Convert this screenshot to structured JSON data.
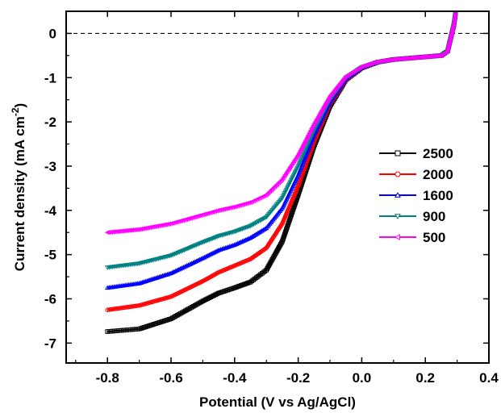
{
  "chart_data": {
    "type": "line",
    "title": "",
    "xlabel": "Potential (V vs Ag/AgCl)",
    "ylabel_main": "Current density (mA cm",
    "ylabel_sup": "-2",
    "ylabel_close": ")",
    "xlim": [
      -0.93,
      0.4
    ],
    "ylim": [
      -7.45,
      0.5
    ],
    "x_ticks": [
      "-0.8",
      "-0.6",
      "-0.4",
      "-0.2",
      "0.0",
      "0.2",
      "0.4"
    ],
    "x_tick_values": [
      -0.8,
      -0.6,
      -0.4,
      -0.2,
      0.0,
      0.2,
      0.4
    ],
    "y_ticks": [
      "0",
      "-1",
      "-2",
      "-3",
      "-4",
      "-5",
      "-6",
      "-7"
    ],
    "y_tick_values": [
      0,
      -1,
      -2,
      -3,
      -4,
      -5,
      -6,
      -7
    ],
    "zero_line": 0,
    "legend_position": "right",
    "series": [
      {
        "name": "2500",
        "color": "#000000",
        "marker": "square",
        "points": [
          [
            -0.8,
            -6.74
          ],
          [
            -0.7,
            -6.68
          ],
          [
            -0.6,
            -6.45
          ],
          [
            -0.5,
            -6.05
          ],
          [
            -0.45,
            -5.87
          ],
          [
            -0.4,
            -5.75
          ],
          [
            -0.35,
            -5.62
          ],
          [
            -0.3,
            -5.35
          ],
          [
            -0.25,
            -4.7
          ],
          [
            -0.2,
            -3.65
          ],
          [
            -0.15,
            -2.55
          ],
          [
            -0.1,
            -1.65
          ],
          [
            -0.05,
            -1.05
          ],
          [
            0.0,
            -0.78
          ],
          [
            0.05,
            -0.65
          ],
          [
            0.1,
            -0.59
          ],
          [
            0.15,
            -0.56
          ],
          [
            0.2,
            -0.53
          ],
          [
            0.25,
            -0.5
          ],
          [
            0.27,
            -0.4
          ],
          [
            0.28,
            -0.1
          ],
          [
            0.29,
            0.2
          ],
          [
            0.295,
            0.45
          ]
        ]
      },
      {
        "name": "2000",
        "color": "#ff0000",
        "marker": "circle",
        "points": [
          [
            -0.8,
            -6.25
          ],
          [
            -0.7,
            -6.15
          ],
          [
            -0.6,
            -5.95
          ],
          [
            -0.5,
            -5.6
          ],
          [
            -0.45,
            -5.4
          ],
          [
            -0.4,
            -5.25
          ],
          [
            -0.35,
            -5.1
          ],
          [
            -0.3,
            -4.85
          ],
          [
            -0.25,
            -4.3
          ],
          [
            -0.2,
            -3.45
          ],
          [
            -0.15,
            -2.45
          ],
          [
            -0.1,
            -1.6
          ],
          [
            -0.05,
            -1.05
          ],
          [
            0.0,
            -0.78
          ],
          [
            0.05,
            -0.65
          ],
          [
            0.1,
            -0.59
          ],
          [
            0.15,
            -0.56
          ],
          [
            0.2,
            -0.53
          ],
          [
            0.25,
            -0.5
          ],
          [
            0.27,
            -0.4
          ],
          [
            0.28,
            -0.1
          ],
          [
            0.29,
            0.2
          ],
          [
            0.295,
            0.45
          ]
        ]
      },
      {
        "name": "1600",
        "color": "#0000ff",
        "marker": "triangle-up",
        "points": [
          [
            -0.8,
            -5.75
          ],
          [
            -0.7,
            -5.65
          ],
          [
            -0.6,
            -5.42
          ],
          [
            -0.5,
            -5.08
          ],
          [
            -0.45,
            -4.9
          ],
          [
            -0.4,
            -4.78
          ],
          [
            -0.35,
            -4.62
          ],
          [
            -0.3,
            -4.4
          ],
          [
            -0.25,
            -3.95
          ],
          [
            -0.2,
            -3.2
          ],
          [
            -0.15,
            -2.3
          ],
          [
            -0.1,
            -1.55
          ],
          [
            -0.05,
            -1.02
          ],
          [
            0.0,
            -0.77
          ],
          [
            0.05,
            -0.65
          ],
          [
            0.1,
            -0.59
          ],
          [
            0.15,
            -0.56
          ],
          [
            0.2,
            -0.53
          ],
          [
            0.25,
            -0.5
          ],
          [
            0.27,
            -0.4
          ],
          [
            0.28,
            -0.1
          ],
          [
            0.29,
            0.2
          ],
          [
            0.295,
            0.45
          ]
        ]
      },
      {
        "name": "900",
        "color": "#008080",
        "marker": "triangle-down",
        "points": [
          [
            -0.8,
            -5.29
          ],
          [
            -0.7,
            -5.2
          ],
          [
            -0.6,
            -5.02
          ],
          [
            -0.5,
            -4.72
          ],
          [
            -0.45,
            -4.58
          ],
          [
            -0.4,
            -4.48
          ],
          [
            -0.35,
            -4.35
          ],
          [
            -0.3,
            -4.15
          ],
          [
            -0.25,
            -3.72
          ],
          [
            -0.2,
            -3.0
          ],
          [
            -0.15,
            -2.2
          ],
          [
            -0.1,
            -1.5
          ],
          [
            -0.05,
            -1.0
          ],
          [
            0.0,
            -0.76
          ],
          [
            0.05,
            -0.65
          ],
          [
            0.1,
            -0.59
          ],
          [
            0.15,
            -0.56
          ],
          [
            0.2,
            -0.53
          ],
          [
            0.25,
            -0.5
          ],
          [
            0.27,
            -0.4
          ],
          [
            0.28,
            -0.1
          ],
          [
            0.29,
            0.2
          ],
          [
            0.295,
            0.45
          ]
        ]
      },
      {
        "name": "500",
        "color": "#ff00ff",
        "marker": "triangle-left",
        "points": [
          [
            -0.8,
            -4.5
          ],
          [
            -0.7,
            -4.43
          ],
          [
            -0.6,
            -4.3
          ],
          [
            -0.5,
            -4.1
          ],
          [
            -0.45,
            -4.0
          ],
          [
            -0.4,
            -3.92
          ],
          [
            -0.35,
            -3.82
          ],
          [
            -0.3,
            -3.65
          ],
          [
            -0.25,
            -3.3
          ],
          [
            -0.2,
            -2.75
          ],
          [
            -0.15,
            -2.05
          ],
          [
            -0.1,
            -1.42
          ],
          [
            -0.05,
            -0.97
          ],
          [
            0.0,
            -0.75
          ],
          [
            0.05,
            -0.64
          ],
          [
            0.1,
            -0.59
          ],
          [
            0.15,
            -0.56
          ],
          [
            0.2,
            -0.53
          ],
          [
            0.25,
            -0.5
          ],
          [
            0.27,
            -0.4
          ],
          [
            0.28,
            -0.1
          ],
          [
            0.29,
            0.2
          ],
          [
            0.295,
            0.45
          ]
        ]
      }
    ]
  }
}
